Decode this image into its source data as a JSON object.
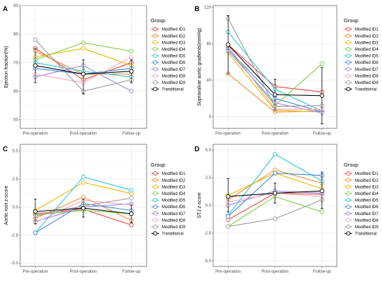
{
  "chart_data": [
    {
      "panel": "A",
      "type": "line",
      "ylabel": "Ejection fraction(%)",
      "categories": [
        "Pre-operation",
        "Post-operation",
        "Follow-up"
      ],
      "ylim": [
        47,
        90
      ],
      "yticks": [
        50,
        60,
        70,
        80,
        90
      ],
      "grid": true,
      "legend_title": "Group",
      "series": [
        {
          "name": "Modified ID1",
          "color": "#e8413c",
          "values": [
            75,
            64,
            70
          ],
          "err": null
        },
        {
          "name": "Modified ID2",
          "color": "#f28e2b",
          "values": [
            74,
            66,
            66
          ],
          "err": null
        },
        {
          "name": "Modified ID3",
          "color": "#e6b800",
          "values": [
            72,
            75,
            69
          ],
          "err": null
        },
        {
          "name": "Modified ID4",
          "color": "#7ccd3c",
          "values": [
            71,
            77,
            74
          ],
          "err": null
        },
        {
          "name": "Modified ID5",
          "color": "#2ec4d9",
          "values": [
            70,
            67,
            65
          ],
          "err": null
        },
        {
          "name": "Modified ID6",
          "color": "#3a86d9",
          "values": [
            68,
            66,
            68
          ],
          "err": null
        },
        {
          "name": "Modified ID7",
          "color": "#9a86e8",
          "values": [
            65,
            69,
            60
          ],
          "err": null
        },
        {
          "name": "Modified ID8",
          "color": "#f4a6b7",
          "values": [
            66,
            63,
            72
          ],
          "err": null
        },
        {
          "name": "Modified ID9",
          "color": "#999999",
          "values": [
            78,
            60,
            64
          ],
          "err": null
        },
        {
          "name": "Tranditional",
          "color": "#000000",
          "values": [
            69,
            66,
            67
          ],
          "err": [
            [
              63,
              75
            ],
            [
              59,
              71
            ],
            [
              63,
              71
            ]
          ]
        }
      ]
    },
    {
      "panel": "B",
      "type": "line",
      "ylabel": "Supravalvar aortic gradients(mmHg)",
      "categories": [
        "Pre-operation",
        "Post-operation",
        "Follow-up"
      ],
      "ylim": [
        -13,
        122
      ],
      "yticks": [
        0,
        40,
        80,
        120
      ],
      "grid": true,
      "legend_title": "Group",
      "series": [
        {
          "name": "Modified ID1",
          "color": "#e8413c",
          "values": [
            79,
            33,
            27
          ],
          "err": null
        },
        {
          "name": "Modified ID2",
          "color": "#f28e2b",
          "values": [
            47,
            5,
            6
          ],
          "err": null
        },
        {
          "name": "Modified ID3",
          "color": "#e6b800",
          "values": [
            70,
            7,
            5
          ],
          "err": null
        },
        {
          "name": "Modified ID4",
          "color": "#7ccd3c",
          "values": [
            75,
            12,
            58
          ],
          "err": null
        },
        {
          "name": "Modified ID5",
          "color": "#2ec4d9",
          "values": [
            93,
            30,
            6
          ],
          "err": null
        },
        {
          "name": "Modified ID6",
          "color": "#3a86d9",
          "values": [
            74,
            20,
            5
          ],
          "err": null
        },
        {
          "name": "Modified ID7",
          "color": "#9a86e8",
          "values": [
            72,
            15,
            4
          ],
          "err": null
        },
        {
          "name": "Modified ID8",
          "color": "#f4a6b7",
          "values": [
            78,
            8,
            8
          ],
          "err": null
        },
        {
          "name": "Modified ID9",
          "color": "#999999",
          "values": [
            108,
            11,
            12
          ],
          "err": null
        },
        {
          "name": "Tranditional",
          "color": "#000000",
          "values": [
            79,
            24,
            23
          ],
          "err": [
            [
              47,
              111
            ],
            [
              7,
              41
            ],
            [
              -8,
              54
            ]
          ]
        }
      ]
    },
    {
      "panel": "C",
      "type": "line",
      "ylabel": "Aortic root z-score",
      "categories": [
        "Pre-operation",
        "Post-operation",
        "Follow-up"
      ],
      "ylim": [
        -5.3,
        5.6
      ],
      "yticks": [
        -5.0,
        -2.5,
        0.0,
        2.5,
        5.0
      ],
      "ytick_labels": [
        "-5.0",
        "-2.5",
        "0.0",
        "2.5",
        "5.0"
      ],
      "grid": true,
      "legend_title": "Group",
      "series": [
        {
          "name": "Modified ID1",
          "color": "#e8413c",
          "values": [
            -0.6,
            -0.2,
            -1.6
          ],
          "err": null
        },
        {
          "name": "Modified ID2",
          "color": "#f28e2b",
          "values": [
            -1.0,
            0.9,
            -1.2
          ],
          "err": null
        },
        {
          "name": "Modified ID3",
          "color": "#e6b800",
          "values": [
            -0.3,
            2.2,
            1.2
          ],
          "err": null
        },
        {
          "name": "Modified ID4",
          "color": "#7ccd3c",
          "values": [
            -0.7,
            -0.3,
            -0.6
          ],
          "err": null
        },
        {
          "name": "Modified ID5",
          "color": "#2ec4d9",
          "values": [
            -2.3,
            2.7,
            1.5
          ],
          "err": null
        },
        {
          "name": "Modified ID6",
          "color": "#3a86d9",
          "values": [
            -2.3,
            0.3,
            -0.3
          ],
          "err": null
        },
        {
          "name": "Modified ID7",
          "color": "#9a86e8",
          "values": [
            -1.3,
            0.0,
            0.3
          ],
          "err": null
        },
        {
          "name": "Modified ID8",
          "color": "#f4a6b7",
          "values": [
            -1.4,
            0.6,
            0.2
          ],
          "err": null
        },
        {
          "name": "Modified ID9",
          "color": "#999999",
          "values": [
            -0.8,
            0.1,
            0.8
          ],
          "err": null
        },
        {
          "name": "Tranditional",
          "color": "#000000",
          "values": [
            -0.4,
            -0.1,
            -0.6
          ],
          "err": [
            [
              -1.5,
              0.7
            ],
            [
              -0.9,
              0.7
            ],
            [
              -1.4,
              0.2
            ]
          ]
        }
      ]
    },
    {
      "panel": "D",
      "type": "line",
      "ylabel": "STJ z-score",
      "categories": [
        "Pre-operation",
        "Post-operation",
        "Follow-up"
      ],
      "ylim": [
        -5.5,
        5.5
      ],
      "yticks": [
        -5.0,
        -2.5,
        0.0,
        2.5,
        5.0
      ],
      "ytick_labels": [
        "-5.0",
        "-2.5",
        "0.0",
        "2.5",
        "5.0"
      ],
      "grid": true,
      "legend_title": "Group",
      "series": [
        {
          "name": "Modified ID1",
          "color": "#e8413c",
          "values": [
            -1.3,
            1.1,
            1.0
          ],
          "err": null
        },
        {
          "name": "Modified ID2",
          "color": "#f28e2b",
          "values": [
            0.5,
            3.2,
            2.0
          ],
          "err": null
        },
        {
          "name": "Modified ID3",
          "color": "#e6b800",
          "values": [
            0.9,
            2.9,
            1.5
          ],
          "err": null
        },
        {
          "name": "Modified ID4",
          "color": "#7ccd3c",
          "values": [
            -1.9,
            0.8,
            -0.6
          ],
          "err": null
        },
        {
          "name": "Modified ID5",
          "color": "#2ec4d9",
          "values": [
            -0.9,
            4.6,
            2.2
          ],
          "err": null
        },
        {
          "name": "Modified ID6",
          "color": "#3a86d9",
          "values": [
            -1.0,
            2.9,
            2.7
          ],
          "err": null
        },
        {
          "name": "Modified ID7",
          "color": "#9a86e8",
          "values": [
            0.0,
            1.3,
            1.1
          ],
          "err": null
        },
        {
          "name": "Modified ID8",
          "color": "#f4a6b7",
          "values": [
            0.3,
            1.1,
            0.8
          ],
          "err": null
        },
        {
          "name": "Modified ID9",
          "color": "#999999",
          "values": [
            -1.9,
            -1.2,
            0.5
          ],
          "err": null
        },
        {
          "name": "Tranditional",
          "color": "#000000",
          "values": [
            0.8,
            1.1,
            1.3
          ],
          "err": [
            [
              -0.6,
              2.4
            ],
            [
              0.2,
              2.0
            ],
            [
              -0.3,
              3.0
            ]
          ]
        }
      ]
    }
  ]
}
